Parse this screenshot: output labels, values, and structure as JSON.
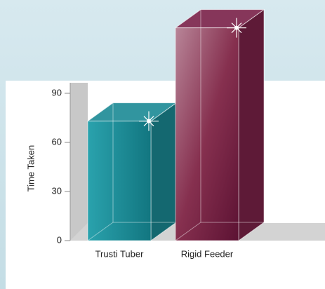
{
  "chart_data": {
    "type": "bar3d",
    "y_label": "Time Taken",
    "categories": [
      "Trusti Tuber",
      "Rigid Feeder"
    ],
    "values": [
      73,
      130
    ],
    "colors": [
      "#1b8a95",
      "#7d2249"
    ],
    "ylim": [
      0,
      90
    ],
    "yticks": [
      0,
      30,
      60,
      90
    ],
    "grid": false
  }
}
